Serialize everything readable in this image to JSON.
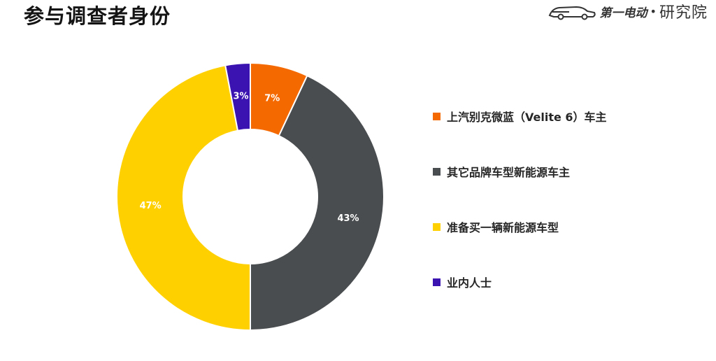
{
  "page": {
    "title": "参与调查者身份"
  },
  "logo": {
    "name": "第一电动",
    "dot": "•",
    "institute": "研究院"
  },
  "chart_data": {
    "type": "pie",
    "subtype": "donut",
    "title": "",
    "labels": [
      "上汽别克微蓝（Velite 6）车主",
      "其它品牌车型新能源车主",
      "准备买一辆新能源车型",
      "业内人士"
    ],
    "values": [
      7,
      43,
      47,
      3
    ],
    "value_labels": [
      "7%",
      "43%",
      "47%",
      "3%"
    ],
    "colors": [
      "#f56a00",
      "#4a4d4f",
      "#ffd000",
      "#3a13b0"
    ],
    "legend_position": "right"
  }
}
